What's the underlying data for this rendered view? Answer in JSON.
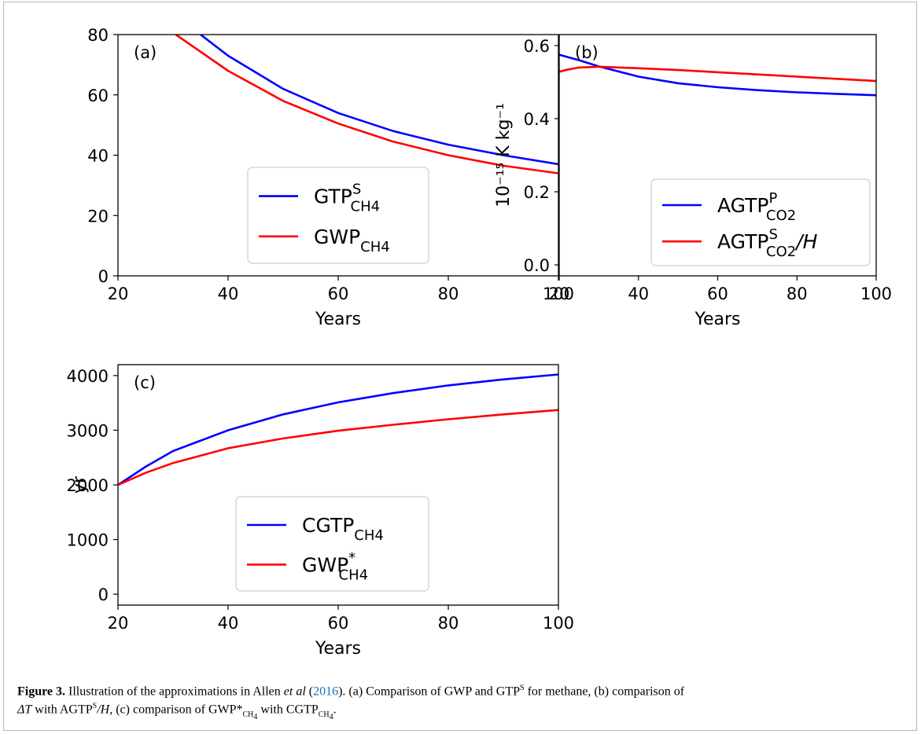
{
  "chart_data": [
    {
      "type": "line",
      "panel_label": "(a)",
      "xlabel": "Years",
      "ylabel": "",
      "xlim": [
        20,
        100
      ],
      "ylim": [
        0,
        80
      ],
      "xticks": [
        "20",
        "40",
        "60",
        "80",
        "100"
      ],
      "yticks": [
        "0",
        "20",
        "40",
        "60",
        "80"
      ],
      "legend_position": "lower-right",
      "series": [
        {
          "name": "GTP",
          "name_sup": "S",
          "name_sub": "CH4",
          "color": "#0000ff",
          "x": [
            35,
            40,
            50,
            60,
            70,
            80,
            90,
            100
          ],
          "y": [
            80,
            73,
            62,
            54,
            48,
            43.5,
            40,
            37
          ]
        },
        {
          "name": "GWP",
          "name_sup": "",
          "name_sub": "CH4",
          "color": "#ff0000",
          "x": [
            30.5,
            40,
            50,
            60,
            70,
            80,
            90,
            100
          ],
          "y": [
            80,
            68,
            58,
            50.5,
            44.5,
            40,
            36.5,
            34
          ]
        }
      ]
    },
    {
      "type": "line",
      "panel_label": "(b)",
      "xlabel": "Years",
      "ylabel": "10⁻¹⁵ K kg⁻¹",
      "xlim": [
        20,
        100
      ],
      "ylim": [
        -0.03,
        0.63
      ],
      "xticks": [
        "20",
        "40",
        "60",
        "80",
        "100"
      ],
      "yticks": [
        "0.0",
        "0.2",
        "0.4",
        "0.6"
      ],
      "ytick_values": [
        0,
        0.2,
        0.4,
        0.6
      ],
      "legend_position": "lower-right",
      "series": [
        {
          "name": "AGTP",
          "name_sup": "P",
          "name_sub": "CO2",
          "suffix": "",
          "color": "#0000ff",
          "x": [
            20,
            25,
            30,
            40,
            50,
            60,
            70,
            80,
            90,
            100
          ],
          "y": [
            0.575,
            0.56,
            0.543,
            0.515,
            0.497,
            0.486,
            0.478,
            0.472,
            0.468,
            0.464
          ]
        },
        {
          "name": "AGTP",
          "name_sup": "S",
          "name_sub": "CO2",
          "suffix": "/H",
          "color": "#ff0000",
          "x": [
            20,
            22,
            25,
            30,
            40,
            50,
            60,
            70,
            80,
            90,
            100
          ],
          "y": [
            0.528,
            0.534,
            0.54,
            0.542,
            0.538,
            0.533,
            0.527,
            0.521,
            0.515,
            0.509,
            0.503
          ]
        }
      ]
    },
    {
      "type": "line",
      "panel_label": "(c)",
      "xlabel": "Years",
      "ylabel": "yr",
      "xlim": [
        20,
        100
      ],
      "ylim": [
        -200,
        4200
      ],
      "xticks": [
        "20",
        "40",
        "60",
        "80",
        "100"
      ],
      "yticks": [
        "0",
        "1000",
        "2000",
        "3000",
        "4000"
      ],
      "ytick_values": [
        0,
        1000,
        2000,
        3000,
        4000
      ],
      "legend_position": "lower-right",
      "series": [
        {
          "name": "CGTP",
          "name_sup": "",
          "name_sub": "CH4",
          "color": "#0000ff",
          "x": [
            20,
            25,
            30,
            40,
            50,
            60,
            70,
            80,
            90,
            100
          ],
          "y": [
            2000,
            2330,
            2620,
            3000,
            3290,
            3510,
            3680,
            3820,
            3930,
            4020
          ]
        },
        {
          "name": "GWP",
          "name_sup": "*",
          "name_sub": "CH4",
          "color": "#ff0000",
          "x": [
            20,
            25,
            30,
            40,
            50,
            60,
            70,
            80,
            90,
            100
          ],
          "y": [
            2000,
            2220,
            2400,
            2670,
            2850,
            2990,
            3100,
            3200,
            3290,
            3370
          ]
        }
      ]
    }
  ],
  "caption": {
    "label": "Figure 3.",
    "text1": " Illustration of the approximations in Allen ",
    "etal": "et al",
    "cite_open": " (",
    "cite": "2016",
    "text2": "). (a) Comparison of GWP and GTP",
    "sup_s1": "S",
    "text3": " for methane, (b) comparison of ",
    "delta_t": "ΔT",
    "text4": " with AGTP",
    "sup_s2": "S",
    "slash_h": "/H",
    "text5": ", (c) comparison of GWP*",
    "sub_ch4_1": "CH",
    "sub_4_1": "4",
    "text6": " with CGTP",
    "sub_ch4_2": "CH",
    "sub_4_2": "4",
    "text7": "."
  }
}
